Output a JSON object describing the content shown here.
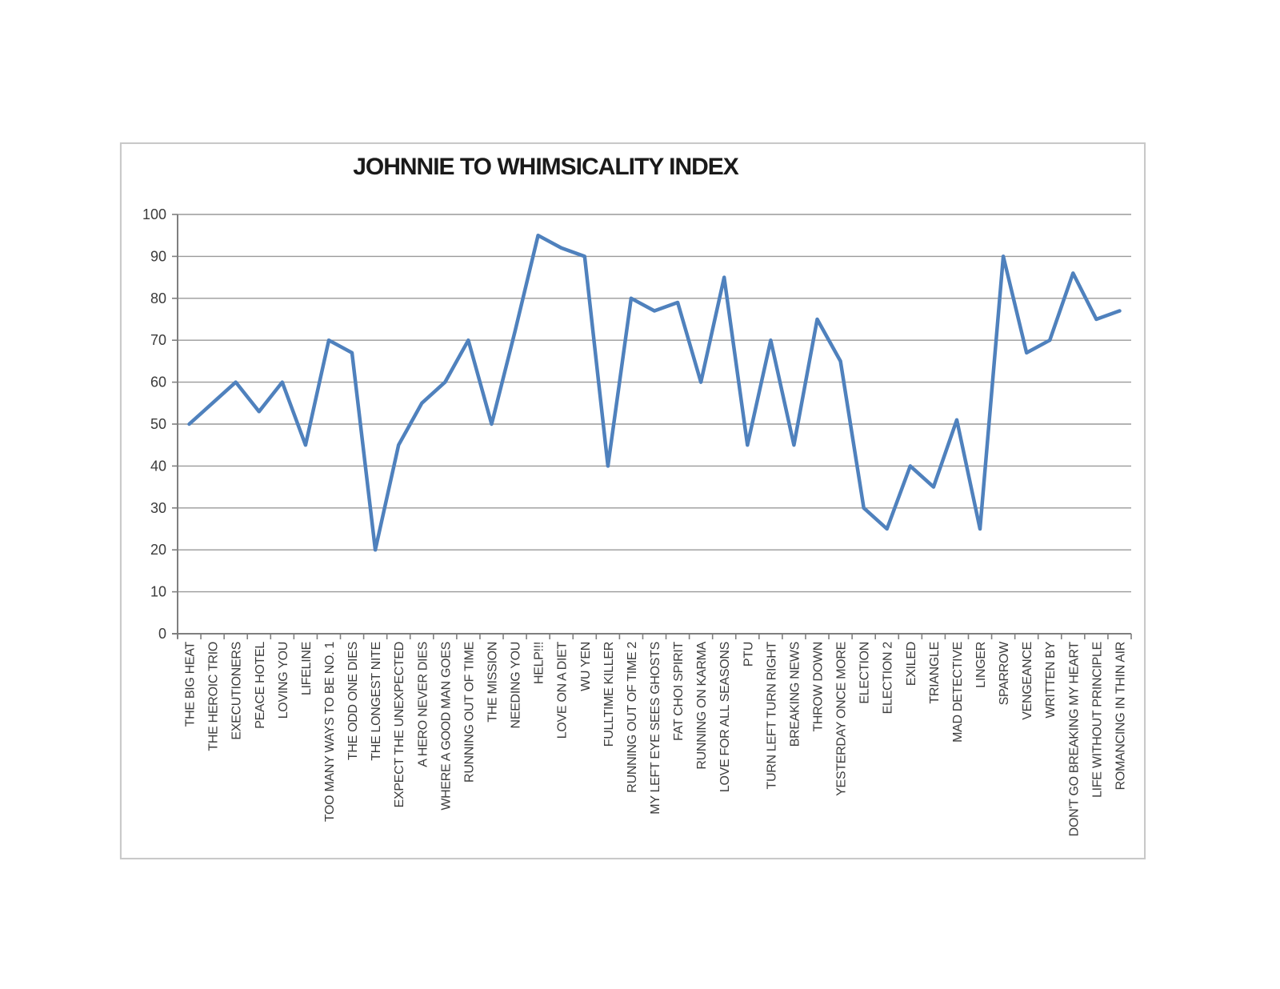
{
  "chart": {
    "title": "JOHNNIE TO WHIMSICALITY INDEX"
  },
  "chart_data": {
    "type": "line",
    "title": "JOHNNIE TO WHIMSICALITY INDEX",
    "xlabel": "",
    "ylabel": "",
    "ylim": [
      0,
      100
    ],
    "y_ticks": [
      0,
      10,
      20,
      30,
      40,
      50,
      60,
      70,
      80,
      90,
      100
    ],
    "grid": true,
    "legend": false,
    "line_color": "#4F81BD",
    "gridline_color": "#9a9a9a",
    "axis_color": "#7f7f7f",
    "label_color": "#3b3b3b",
    "categories": [
      "THE BIG HEAT",
      "THE HEROIC TRIO",
      "EXECUTIONERS",
      "PEACE HOTEL",
      "LOVING YOU",
      "LIFELINE",
      "TOO MANY WAYS TO BE NO. 1",
      "THE ODD ONE DIES",
      "THE LONGEST NITE",
      "EXPECT THE UNEXPECTED",
      "A HERO NEVER DIES",
      "WHERE A GOOD MAN GOES",
      "RUNNING OUT OF TIME",
      "THE MISSION",
      "NEEDING YOU",
      "HELP!!!",
      "LOVE ON A DIET",
      "WU YEN",
      "FULLTIME KILLER",
      "RUNNING OUT OF TIME 2",
      "MY LEFT EYE SEES GHOSTS",
      "FAT CHOI SPIRIT",
      "RUNNING ON KARMA",
      "LOVE FOR ALL SEASONS",
      "PTU",
      "TURN LEFT TURN RIGHT",
      "BREAKING NEWS",
      "THROW DOWN",
      "YESTERDAY ONCE MORE",
      "ELECTION",
      "ELECTION 2",
      "EXILED",
      "TRIANGLE",
      "MAD DETECTIVE",
      "LINGER",
      "SPARROW",
      "VENGEANCE",
      "WRITTEN BY",
      "DON'T GO BREAKING MY HEART",
      "LIFE WITHOUT PRINCIPLE",
      "ROMANCING IN THIN AIR"
    ],
    "values": [
      50,
      55,
      60,
      53,
      60,
      45,
      70,
      67,
      20,
      45,
      55,
      60,
      70,
      50,
      72,
      95,
      92,
      90,
      40,
      80,
      77,
      79,
      60,
      85,
      45,
      70,
      45,
      75,
      65,
      30,
      25,
      40,
      35,
      51,
      25,
      90,
      67,
      70,
      86,
      75,
      77
    ]
  }
}
